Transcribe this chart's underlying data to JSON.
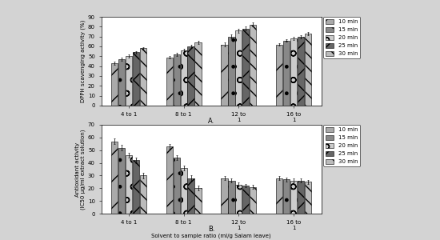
{
  "chart_A": {
    "title": "A.",
    "ylabel": "DPPH scavenging activity (%)",
    "xlabel": "Solvent to sample ratio (ml/g Salam leave)",
    "ylim": [
      0,
      90
    ],
    "yticks": [
      0,
      10,
      20,
      30,
      40,
      50,
      60,
      70,
      80,
      90
    ],
    "groups": [
      "4 to 1",
      "8 to 1",
      "12 to\n1",
      "16 to\n1"
    ],
    "values": [
      [
        43,
        47,
        50,
        54,
        58
      ],
      [
        49,
        52,
        56,
        60,
        64
      ],
      [
        62,
        70,
        76,
        78,
        82
      ],
      [
        62,
        66,
        68,
        70,
        73
      ]
    ],
    "errors": [
      [
        1.5,
        1.5,
        1.5,
        1.5,
        1.5
      ],
      [
        1.5,
        1.5,
        1.5,
        1.5,
        1.5
      ],
      [
        2.0,
        2.0,
        2.0,
        2.0,
        2.0
      ],
      [
        1.5,
        1.5,
        1.5,
        1.5,
        1.5
      ]
    ]
  },
  "chart_B": {
    "title": "B.",
    "ylabel": "Antioxidant activity\n(IC50 µg/ml extract solution)",
    "xlabel": "Solvent to sample ratio (ml/g Salam leave)",
    "ylim": [
      0,
      70
    ],
    "yticks": [
      0,
      10,
      20,
      30,
      40,
      50,
      60,
      70
    ],
    "groups": [
      "4 to 1",
      "8 to 1",
      "12 to\n1",
      "16 to\n1"
    ],
    "values": [
      [
        57,
        52,
        46,
        42,
        30
      ],
      [
        53,
        44,
        36,
        28,
        20
      ],
      [
        28,
        26,
        23,
        22,
        21
      ],
      [
        28,
        27,
        26,
        26,
        25
      ]
    ],
    "errors": [
      [
        2.0,
        2.0,
        2.0,
        2.0,
        2.0
      ],
      [
        2.0,
        2.0,
        2.0,
        2.0,
        2.0
      ],
      [
        1.5,
        1.5,
        1.5,
        1.5,
        1.5
      ],
      [
        1.5,
        1.5,
        1.5,
        1.5,
        1.5
      ]
    ]
  },
  "series_labels": [
    "10 min",
    "15 min",
    "20 min",
    "25 min",
    "30 min"
  ],
  "bar_patterns": [
    "/",
    ".",
    "o",
    "x",
    "\\\\"
  ],
  "bar_colors": [
    "#aaaaaa",
    "#888888",
    "#cccccc",
    "#666666",
    "#bbbbbb"
  ],
  "bar_edge_color": "black",
  "figure_bg": "#d3d3d3",
  "font_size": 5,
  "legend_fontsize": 5,
  "tick_fontsize": 5
}
